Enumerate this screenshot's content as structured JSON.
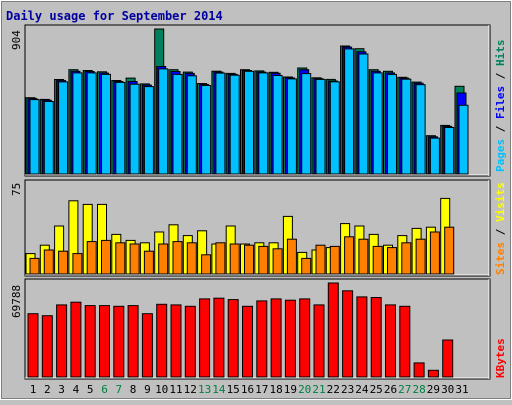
{
  "title": "Daily usage for September 2014",
  "colors": {
    "background": "#c0c0c0",
    "panel": "#c0c0c0",
    "title": "#0000a0",
    "hits": "#00805c",
    "files": "#0000ff",
    "pages": "#00c0ff",
    "visits": "#ffff00",
    "sites": "#ff8000",
    "kbytes": "#ff0000",
    "weekend_day": "#008040",
    "weekday": "#000000"
  },
  "chart_data": [
    {
      "type": "bar",
      "panel": "hits-files-pages",
      "ymax_label": "904",
      "ylim": [
        0,
        904
      ],
      "legend": [
        "Pages",
        "Files",
        "Hits"
      ],
      "categories": [
        "1",
        "2",
        "3",
        "4",
        "5",
        "6",
        "7",
        "8",
        "9",
        "10",
        "11",
        "12",
        "13",
        "14",
        "15",
        "16",
        "17",
        "18",
        "19",
        "20",
        "21",
        "22",
        "23",
        "24",
        "25",
        "26",
        "27",
        "28",
        "29",
        "30",
        "31"
      ],
      "series": [
        {
          "name": "Hits",
          "values": [
            476,
            465,
            589,
            650,
            645,
            637,
            583,
            598,
            562,
            904,
            650,
            635,
            564,
            641,
            627,
            650,
            643,
            634,
            605,
            661,
            600,
            590,
            798,
            781,
            650,
            640,
            603,
            573,
            239,
            303,
            547
          ]
        },
        {
          "name": "Files",
          "values": [
            470,
            460,
            582,
            640,
            639,
            629,
            577,
            577,
            554,
            670,
            639,
            627,
            558,
            635,
            621,
            645,
            635,
            628,
            599,
            650,
            594,
            580,
            791,
            762,
            640,
            630,
            597,
            566,
            232,
            297,
            505
          ]
        },
        {
          "name": "Pages",
          "values": [
            464,
            452,
            574,
            630,
            630,
            621,
            571,
            560,
            545,
            655,
            621,
            612,
            552,
            629,
            616,
            640,
            630,
            614,
            593,
            626,
            590,
            575,
            780,
            748,
            630,
            621,
            591,
            557,
            224,
            290,
            428
          ]
        }
      ]
    },
    {
      "type": "bar",
      "panel": "visits-sites",
      "ymax_label": "75",
      "ylim": [
        0,
        75
      ],
      "legend": [
        "Sites",
        "Visits"
      ],
      "categories": [
        "1",
        "2",
        "3",
        "4",
        "5",
        "6",
        "7",
        "8",
        "9",
        "10",
        "11",
        "12",
        "13",
        "14",
        "15",
        "16",
        "17",
        "18",
        "19",
        "20",
        "21",
        "22",
        "23",
        "24",
        "25",
        "26",
        "27",
        "28",
        "29",
        "30",
        "31"
      ],
      "series": [
        {
          "name": "Visits",
          "values": [
            17,
            24,
            40,
            61,
            58,
            58,
            33,
            28,
            26,
            35,
            41,
            32,
            36,
            25,
            40,
            25,
            26,
            26,
            48,
            18,
            20,
            22,
            42,
            40,
            33,
            24,
            32,
            38,
            39,
            63,
            null
          ]
        },
        {
          "name": "Sites",
          "values": [
            13,
            20,
            19,
            17,
            27,
            28,
            26,
            25,
            19,
            25,
            27,
            26,
            16,
            26,
            25,
            24,
            23,
            21,
            29,
            13,
            24,
            23,
            31,
            29,
            23,
            22,
            26,
            29,
            35,
            39,
            null
          ]
        }
      ]
    },
    {
      "type": "bar",
      "panel": "kbytes",
      "ymax_label": "69788",
      "ylim": [
        0,
        69788
      ],
      "legend": [
        "KBytes"
      ],
      "categories": [
        "1",
        "2",
        "3",
        "4",
        "5",
        "6",
        "7",
        "8",
        "9",
        "10",
        "11",
        "12",
        "13",
        "14",
        "15",
        "16",
        "17",
        "18",
        "19",
        "20",
        "21",
        "22",
        "23",
        "24",
        "25",
        "26",
        "27",
        "28",
        "29",
        "30",
        "31"
      ],
      "series": [
        {
          "name": "KBytes",
          "values": [
            47000,
            45500,
            53500,
            55500,
            53000,
            53000,
            52500,
            53000,
            47000,
            54000,
            53500,
            52500,
            58000,
            58500,
            57500,
            52500,
            56500,
            58000,
            57000,
            58000,
            53500,
            69788,
            64000,
            59500,
            59000,
            53500,
            52500,
            10500,
            5000,
            27500,
            null
          ]
        }
      ]
    }
  ],
  "x_axis_labels": [
    "1",
    "2",
    "3",
    "4",
    "5",
    "6",
    "7",
    "8",
    "9",
    "10",
    "11",
    "12",
    "13",
    "14",
    "15",
    "16",
    "17",
    "18",
    "19",
    "20",
    "21",
    "22",
    "23",
    "24",
    "25",
    "26",
    "27",
    "28",
    "29",
    "30",
    "31"
  ],
  "weekend_days": [
    "6",
    "7",
    "13",
    "14",
    "20",
    "21",
    "27",
    "28"
  ]
}
